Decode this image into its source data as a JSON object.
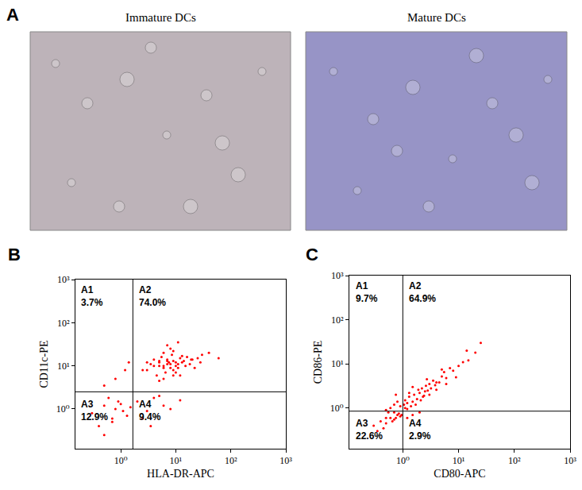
{
  "images": {
    "title": "A",
    "captions": [
      "Immature DCs",
      "Mature DCs"
    ]
  },
  "chart_data": [
    {
      "type": "scatter",
      "title": "B",
      "x_label": "HLA-DR-APC",
      "y_label": "CD11c-PE",
      "log": true,
      "grid": false,
      "color": "#ff0000",
      "marker": "dot",
      "xlim": [
        0.15,
        1000
      ],
      "ylim": [
        0.12,
        1000
      ],
      "xticks": [
        {
          "value": 1,
          "label": "10⁰"
        },
        {
          "value": 10,
          "label": "10¹"
        },
        {
          "value": 100,
          "label": "10²"
        },
        {
          "value": 1000,
          "label": "10³"
        }
      ],
      "yticks": [
        {
          "value": 1,
          "label": "10⁰"
        },
        {
          "value": 10,
          "label": "10¹"
        },
        {
          "value": 100,
          "label": "10²"
        },
        {
          "value": 1000,
          "label": "10³"
        }
      ],
      "gate_x": 1.66,
      "gate_y": 2.5,
      "quadrants": [
        {
          "text": "A1",
          "value": 3.7,
          "label": "3.7%"
        },
        {
          "text": "A2",
          "value": 74.0,
          "label": "74.0%"
        },
        {
          "text": "A3",
          "value": 12.9,
          "label": "12.9%"
        },
        {
          "text": "A4",
          "value": 9.4,
          "label": "9.4%"
        }
      ],
      "x": [
        4,
        5,
        6,
        7,
        8,
        9,
        10,
        12,
        3,
        5.5,
        6.5,
        7.5,
        8.5,
        11,
        14,
        18,
        25,
        4.5,
        6,
        9,
        13,
        20,
        3.5,
        5,
        7,
        10,
        15,
        30,
        8,
        6,
        5,
        12,
        9,
        16,
        22,
        4,
        7,
        11,
        40,
        60,
        2.5,
        3,
        6,
        8,
        10,
        13,
        5,
        9,
        7,
        19,
        28,
        11,
        0.3,
        0.5,
        0.7,
        0.9,
        1.1,
        0.4,
        0.6,
        0.8,
        1.3,
        0.5,
        1.0,
        0.7,
        1.5,
        2,
        3,
        4,
        6,
        2.5,
        5,
        8,
        3.5,
        12,
        0.8,
        1.2,
        0.5,
        1.4
      ],
      "y": [
        10,
        12,
        9,
        14,
        11,
        13,
        10,
        15,
        8,
        16,
        7,
        12,
        18,
        9,
        13,
        11,
        15,
        6,
        20,
        8,
        17,
        14,
        11,
        10,
        13,
        12,
        10,
        18,
        25,
        5,
        4.5,
        6,
        22,
        16,
        9,
        14,
        30,
        11,
        20,
        15,
        8,
        12,
        10,
        9,
        7,
        12,
        13,
        6,
        11,
        14,
        12,
        35,
        0.8,
        1.2,
        0.6,
        1.5,
        0.9,
        0.4,
        1.8,
        1.0,
        0.7,
        0.25,
        1.3,
        0.5,
        1.1,
        1.5,
        0.9,
        1.8,
        1.2,
        0.6,
        2.0,
        1.0,
        0.4,
        1.6,
        5,
        8,
        3.5,
        12
      ]
    },
    {
      "type": "scatter",
      "title": "C",
      "x_label": "CD80-APC",
      "y_label": "CD86-PE",
      "log": true,
      "grid": false,
      "color": "#ff0000",
      "marker": "dot",
      "xlim": [
        0.11,
        1000
      ],
      "ylim": [
        0.12,
        1000
      ],
      "xticks": [
        {
          "value": 1,
          "label": "10⁰"
        },
        {
          "value": 10,
          "label": "10¹"
        },
        {
          "value": 100,
          "label": "10²"
        },
        {
          "value": 1000,
          "label": "10³"
        }
      ],
      "yticks": [
        {
          "value": 1,
          "label": "10⁰"
        },
        {
          "value": 10,
          "label": "10¹"
        },
        {
          "value": 100,
          "label": "10²"
        },
        {
          "value": 1000,
          "label": "10³"
        }
      ],
      "gate_x": 1,
      "gate_y": 0.85,
      "quadrants": [
        {
          "text": "A1",
          "value": 9.7,
          "label": "9.7%"
        },
        {
          "text": "A2",
          "value": 64.9,
          "label": "64.9%"
        },
        {
          "text": "A3",
          "value": 22.6,
          "label": "22.6%"
        },
        {
          "text": "A4",
          "value": 2.9,
          "label": "2.9%"
        }
      ],
      "x": [
        1.2,
        1.5,
        2,
        2.5,
        3,
        4,
        5,
        6,
        8,
        10,
        1.1,
        1.3,
        1.8,
        2.2,
        2.8,
        3.5,
        4.5,
        1.4,
        1.6,
        2.4,
        3.2,
        5.5,
        7,
        12,
        15,
        20,
        1.1,
        1.9,
        2.6,
        3.8,
        1.2,
        1.7,
        2.1,
        3,
        4,
        6,
        9,
        25,
        1.3,
        2.3,
        1.5,
        1.05,
        2.7,
        5,
        14,
        0.3,
        0.4,
        0.5,
        0.6,
        0.7,
        0.8,
        0.9,
        0.45,
        0.55,
        0.65,
        0.75,
        0.85,
        0.35,
        0.5,
        0.7,
        0.95,
        0.6,
        0.7,
        0.8,
        0.9,
        0.75,
        0.5,
        1.5,
        2,
        1.2
      ],
      "y": [
        1.3,
        1.4,
        2.2,
        2.4,
        3.5,
        3.8,
        5.2,
        4.8,
        7,
        9,
        1.0,
        1.8,
        1.6,
        2.8,
        2.5,
        4.2,
        3.8,
        1.1,
        2.0,
        1.9,
        2.8,
        6.5,
        8,
        11,
        12,
        18,
        1.5,
        2.6,
        3.2,
        3.3,
        0.95,
        1.2,
        1.5,
        2.0,
        2.6,
        3.5,
        5,
        30,
        2.2,
        1.8,
        3.0,
        1.2,
        4.5,
        7.5,
        20,
        0.4,
        0.5,
        0.45,
        0.6,
        0.55,
        0.7,
        0.65,
        0.35,
        0.8,
        0.5,
        0.6,
        0.75,
        0.3,
        0.6,
        0.8,
        0.7,
        1.0,
        1.2,
        1.4,
        1.1,
        2.0,
        0.9,
        0.7,
        0.8,
        0.6
      ]
    }
  ]
}
